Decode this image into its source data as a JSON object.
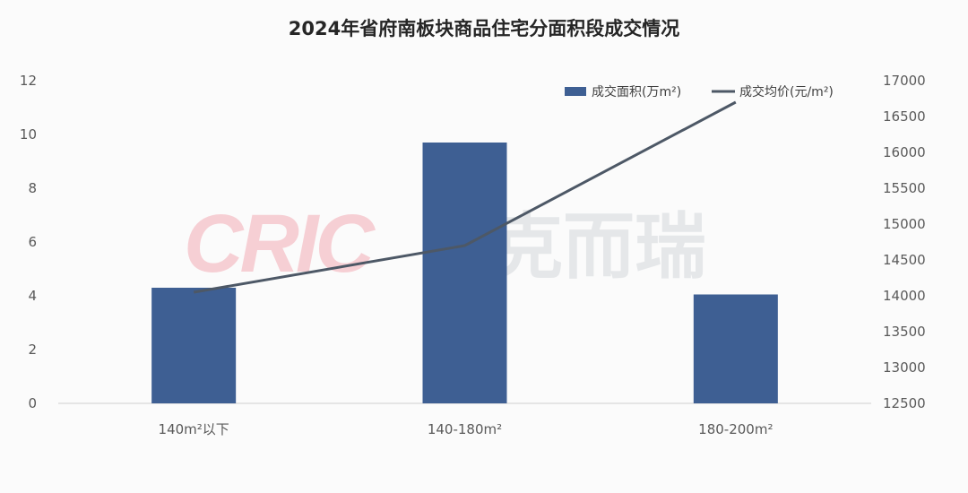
{
  "chart_data": {
    "type": "bar+line",
    "title": "2024年省府南板块商品住宅分面积段成交情况",
    "categories": [
      "140m²以下",
      "140-180m²",
      "180-200m²"
    ],
    "series": [
      {
        "name": "成交面积(万m²)",
        "type": "bar",
        "axis": "left",
        "values": [
          4.3,
          9.7,
          4.05
        ],
        "color": "#3e5f93"
      },
      {
        "name": "成交均价(元/m²)",
        "type": "line",
        "axis": "right",
        "values": [
          14050,
          14700,
          16700
        ],
        "color": "#4d5866"
      }
    ],
    "y_left": {
      "min": 0,
      "max": 12,
      "ticks": [
        "0",
        "2",
        "4",
        "6",
        "8",
        "10",
        "12"
      ]
    },
    "y_right": {
      "min": 12500,
      "max": 17000,
      "ticks": [
        "12500",
        "13000",
        "13500",
        "14000",
        "14500",
        "15000",
        "15500",
        "16000",
        "16500",
        "17000"
      ]
    },
    "legend_position": "top-right",
    "grid": false
  },
  "watermark": {
    "latin": "CRIC",
    "cjk": "克而瑞"
  }
}
